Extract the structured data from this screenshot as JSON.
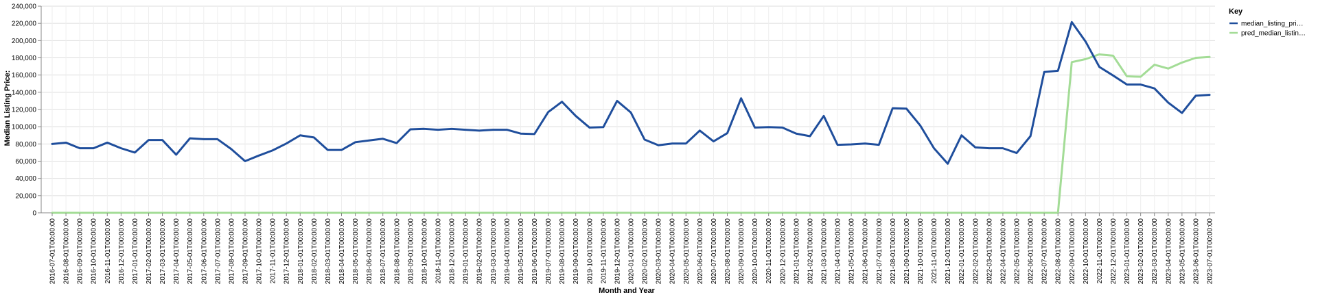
{
  "chart_data": {
    "type": "line",
    "xlabel": "Month and Year",
    "ylabel": "Median Listing Price:",
    "ylim": [
      0,
      240000
    ],
    "yticks": [
      "0",
      "20,000",
      "40,000",
      "60,000",
      "80,000",
      "100,000",
      "120,000",
      "140,000",
      "160,000",
      "180,000",
      "200,000",
      "220,000",
      "240,000"
    ],
    "grid": true,
    "legend_title": "Key",
    "legend_position": "right",
    "categories": [
      "2016-07-01T00:00:00",
      "2016-08-01T00:00:00",
      "2016-09-01T00:00:00",
      "2016-10-01T00:00:00",
      "2016-11-01T00:00:00",
      "2016-12-01T00:00:00",
      "2017-01-01T00:00:00",
      "2017-02-01T00:00:00",
      "2017-03-01T00:00:00",
      "2017-04-01T00:00:00",
      "2017-05-01T00:00:00",
      "2017-06-01T00:00:00",
      "2017-07-01T00:00:00",
      "2017-08-01T00:00:00",
      "2017-09-01T00:00:00",
      "2017-10-01T00:00:00",
      "2017-11-01T00:00:00",
      "2017-12-01T00:00:00",
      "2018-01-01T00:00:00",
      "2018-02-01T00:00:00",
      "2018-03-01T00:00:00",
      "2018-04-01T00:00:00",
      "2018-05-01T00:00:00",
      "2018-06-01T00:00:00",
      "2018-07-01T00:00:00",
      "2018-08-01T00:00:00",
      "2018-09-01T00:00:00",
      "2018-10-01T00:00:00",
      "2018-11-01T00:00:00",
      "2018-12-01T00:00:00",
      "2019-01-01T00:00:00",
      "2019-02-01T00:00:00",
      "2019-03-01T00:00:00",
      "2019-04-01T00:00:00",
      "2019-05-01T00:00:00",
      "2019-06-01T00:00:00",
      "2019-07-01T00:00:00",
      "2019-08-01T00:00:00",
      "2019-09-01T00:00:00",
      "2019-10-01T00:00:00",
      "2019-11-01T00:00:00",
      "2019-12-01T00:00:00",
      "2020-01-01T00:00:00",
      "2020-02-01T00:00:00",
      "2020-03-01T00:00:00",
      "2020-04-01T00:00:00",
      "2020-05-01T00:00:00",
      "2020-06-01T00:00:00",
      "2020-07-01T00:00:00",
      "2020-08-01T00:00:00",
      "2020-09-01T00:00:00",
      "2020-10-01T00:00:00",
      "2020-11-01T00:00:00",
      "2020-12-01T00:00:00",
      "2021-01-01T00:00:00",
      "2021-02-01T00:00:00",
      "2021-03-01T00:00:00",
      "2021-04-01T00:00:00",
      "2021-05-01T00:00:00",
      "2021-06-01T00:00:00",
      "2021-07-01T00:00:00",
      "2021-08-01T00:00:00",
      "2021-09-01T00:00:00",
      "2021-10-01T00:00:00",
      "2021-11-01T00:00:00",
      "2021-12-01T00:00:00",
      "2022-01-01T00:00:00",
      "2022-02-01T00:00:00",
      "2022-03-01T00:00:00",
      "2022-04-01T00:00:00",
      "2022-05-01T00:00:00",
      "2022-06-01T00:00:00",
      "2022-07-01T00:00:00",
      "2022-08-01T00:00:00",
      "2022-09-01T00:00:00",
      "2022-10-01T00:00:00",
      "2022-11-01T00:00:00",
      "2022-12-01T00:00:00",
      "2023-01-01T00:00:00",
      "2023-02-01T00:00:00",
      "2023-03-01T00:00:00",
      "2023-04-01T00:00:00",
      "2023-05-01T00:00:00",
      "2023-06-01T00:00:00",
      "2023-07-01T00:00:00"
    ],
    "series": [
      {
        "name": "median_listing_pri…",
        "color": "#1f4e9c",
        "values": [
          80000,
          81500,
          75000,
          75000,
          81500,
          75000,
          70000,
          84500,
          84500,
          67500,
          86500,
          85500,
          85500,
          74000,
          60000,
          66500,
          72500,
          80500,
          90000,
          87500,
          73000,
          73000,
          82000,
          84000,
          86000,
          81000,
          97000,
          97500,
          96500,
          97500,
          96500,
          95500,
          96500,
          96500,
          92000,
          91500,
          117000,
          129000,
          112500,
          99000,
          99500,
          130000,
          116500,
          85000,
          78500,
          80500,
          80500,
          95500,
          83000,
          92500,
          133000,
          99000,
          99500,
          99000,
          92000,
          89000,
          112500,
          79000,
          79500,
          80500,
          79000,
          121500,
          121000,
          101500,
          75000,
          57000,
          90000,
          76000,
          75000,
          75000,
          69500,
          89000,
          163500,
          165000,
          221500,
          199000,
          169500,
          159500,
          149000,
          149000,
          144500,
          128000,
          116000,
          136000,
          137000
        ]
      },
      {
        "name": "pred_median_listin…",
        "color": "#a3dc96",
        "values": [
          0,
          0,
          0,
          0,
          0,
          0,
          0,
          0,
          0,
          0,
          0,
          0,
          0,
          0,
          0,
          0,
          0,
          0,
          0,
          0,
          0,
          0,
          0,
          0,
          0,
          0,
          0,
          0,
          0,
          0,
          0,
          0,
          0,
          0,
          0,
          0,
          0,
          0,
          0,
          0,
          0,
          0,
          0,
          0,
          0,
          0,
          0,
          0,
          0,
          0,
          0,
          0,
          0,
          0,
          0,
          0,
          0,
          0,
          0,
          0,
          0,
          0,
          0,
          0,
          0,
          0,
          0,
          0,
          0,
          0,
          0,
          0,
          0,
          0,
          175000,
          178500,
          184000,
          182500,
          158500,
          158000,
          172000,
          167500,
          174500,
          180000,
          181000
        ]
      }
    ]
  }
}
